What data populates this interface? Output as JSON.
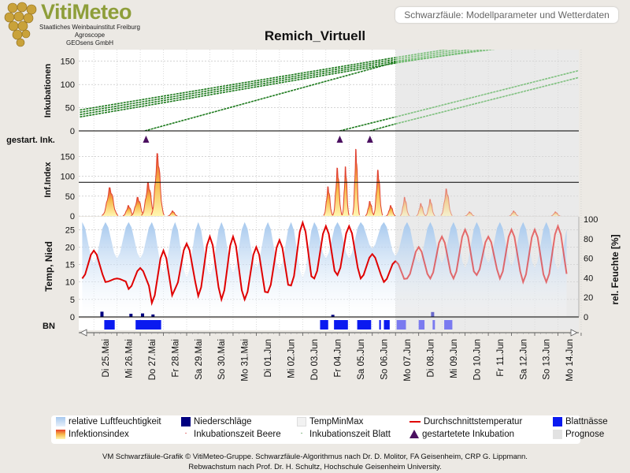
{
  "header": {
    "brand": "VitiMeteo",
    "org_lines": [
      "Staatliches Weinbauinstitut Freiburg",
      "Agroscope",
      "GEOsens GmbH"
    ],
    "tab": "Schwarzfäule: Modellparameter und Wetterdaten"
  },
  "chart_data": {
    "type": "line",
    "title": "Remich_Virtuell",
    "days": [
      "Di 25.Mai",
      "Mi 26.Mai",
      "Do 27.Mai",
      "Fr 28.Mai",
      "Sa 29.Mai",
      "So 30.Mai",
      "Mo 31.Mai",
      "Di 01.Jun",
      "Mi 02.Jun",
      "Do 03.Jun",
      "Fr 04.Jun",
      "Sa 05.Jun",
      "So 06.Jun",
      "Mo 07.Jun",
      "Di 08.Jun",
      "Mi 09.Jun",
      "Do 10.Jun",
      "Fr 11.Jun",
      "Sa 12.Jun",
      "So 13.Jun",
      "Mo 14.Jun"
    ],
    "forecast_start_day": 13,
    "panels": {
      "inkubationen": {
        "ylabel": "Inkubationen",
        "yticks": [
          0,
          50,
          100,
          150
        ],
        "ylim": [
          0,
          175
        ],
        "series": [
          {
            "name": "Inkubationszeit Blatt",
            "x": [
              -0.6,
              13,
              20.9
            ],
            "y": [
              45,
              158,
              220
            ]
          },
          {
            "name": "Inkubationszeit Blatt",
            "x": [
              -0.6,
              13,
              20.9
            ],
            "y": [
              40,
              154,
              216
            ]
          },
          {
            "name": "Inkubationszeit Blatt",
            "x": [
              -0.6,
              13,
              20.9
            ],
            "y": [
              35,
              150,
              212
            ]
          },
          {
            "name": "Inkubationszeit Blatt",
            "x": [
              -0.6,
              13,
              20.9
            ],
            "y": [
              30,
              146,
              208
            ]
          },
          {
            "name": "Inkubationszeit Blatt",
            "x": [
              2.2,
              13,
              20.9
            ],
            "y": [
              0,
              148,
              200
            ]
          },
          {
            "name": "Inkubationszeit Blatt",
            "x": [
              10.6,
              13,
              20.9
            ],
            "y": [
              0,
              30,
              130
            ]
          },
          {
            "name": "Inkubationszeit Blatt",
            "x": [
              11.9,
              13,
              20.9
            ],
            "y": [
              0,
              15,
              115
            ]
          }
        ]
      },
      "gestartete_inkubation": {
        "ylabel": "gestart. Ink.",
        "x": [
          2.25,
          10.6,
          11.9
        ]
      },
      "infektionsindex": {
        "ylabel": "Inf.Index",
        "yticks": [
          0,
          50,
          100,
          150
        ],
        "ylim": [
          0,
          175
        ],
        "threshold": 85,
        "peaks": [
          {
            "x": 0.7,
            "y": 68,
            "w": 0.35
          },
          {
            "x": 1.5,
            "y": 25,
            "w": 0.25
          },
          {
            "x": 1.9,
            "y": 45,
            "w": 0.3
          },
          {
            "x": 2.35,
            "y": 80,
            "w": 0.3
          },
          {
            "x": 2.75,
            "y": 150,
            "w": 0.28
          },
          {
            "x": 3.4,
            "y": 12,
            "w": 0.2
          },
          {
            "x": 10.1,
            "y": 70,
            "w": 0.2
          },
          {
            "x": 10.5,
            "y": 115,
            "w": 0.2
          },
          {
            "x": 10.85,
            "y": 118,
            "w": 0.15
          },
          {
            "x": 11.3,
            "y": 160,
            "w": 0.15
          },
          {
            "x": 11.9,
            "y": 35,
            "w": 0.2
          },
          {
            "x": 12.25,
            "y": 110,
            "w": 0.2
          },
          {
            "x": 12.8,
            "y": 25,
            "w": 0.2
          },
          {
            "x": 13.4,
            "y": 45,
            "w": 0.2
          },
          {
            "x": 14.1,
            "y": 30,
            "w": 0.2
          },
          {
            "x": 14.5,
            "y": 40,
            "w": 0.2
          },
          {
            "x": 15.2,
            "y": 65,
            "w": 0.25
          },
          {
            "x": 16.2,
            "y": 10,
            "w": 0.2
          },
          {
            "x": 18.1,
            "y": 12,
            "w": 0.2
          },
          {
            "x": 19.9,
            "y": 10,
            "w": 0.2
          }
        ]
      },
      "wetter": {
        "ylabel": "Temp, Nied",
        "yticks": [
          0,
          5,
          10,
          15,
          20,
          25
        ],
        "ylim": [
          0,
          28
        ],
        "y2label": "rel. Feuchte [%]",
        "y2ticks": [
          0,
          20,
          40,
          60,
          80,
          100
        ],
        "y2lim": [
          0,
          100
        ],
        "temp_daily_min": [
          11,
          10,
          8,
          4,
          8,
          6,
          5,
          5,
          7,
          9,
          11,
          12,
          11,
          10,
          11,
          11,
          11,
          12,
          11,
          10,
          10
        ],
        "temp_daily_max": [
          19,
          11,
          14,
          19,
          21,
          23,
          23,
          20,
          22,
          27,
          26,
          26,
          18,
          16,
          20,
          23,
          25,
          23,
          25,
          25,
          26
        ],
        "humidity_daily_min": [
          55,
          60,
          60,
          45,
          40,
          42,
          45,
          50,
          48,
          40,
          60,
          60,
          70,
          62,
          55,
          55,
          50,
          55,
          52,
          50,
          48
        ],
        "rain_events": [
          {
            "x": 0.35,
            "v": 1.5
          },
          {
            "x": 1.6,
            "v": 0.9
          },
          {
            "x": 2.1,
            "v": 1.0
          },
          {
            "x": 2.55,
            "v": 0.7
          },
          {
            "x": 10.3,
            "v": 0.6
          },
          {
            "x": 14.6,
            "v": 1.4
          }
        ]
      },
      "blattnaesse": {
        "ylabel": "BN",
        "periods": [
          [
            0.45,
            0.9
          ],
          [
            1.8,
            2.9
          ],
          [
            9.75,
            10.1
          ],
          [
            10.35,
            10.95
          ],
          [
            11.35,
            11.95
          ],
          [
            12.3,
            12.37
          ],
          [
            12.5,
            12.75
          ],
          [
            13.05,
            13.45
          ],
          [
            14.0,
            14.25
          ],
          [
            14.6,
            14.7
          ],
          [
            15.1,
            15.45
          ]
        ]
      }
    },
    "legend": [
      {
        "label": "relative Luftfeuchtigkeit",
        "icon": "humidity-gradient",
        "color": "#9cc3ec"
      },
      {
        "label": "Niederschläge",
        "icon": "square",
        "color": "#000080"
      },
      {
        "label": "TempMinMax",
        "icon": "square",
        "color": "#f2f2f2"
      },
      {
        "label": "Durchschnittstemperatur",
        "icon": "line",
        "color": "#e00000"
      },
      {
        "label": "Blattnässe",
        "icon": "square",
        "color": "#0a1af0"
      },
      {
        "label": "Infektionsindex",
        "icon": "infection-gradient",
        "color": "#f5c040"
      },
      {
        "label": "Inkubationszeit Beere",
        "icon": "dot",
        "color": "#cc0000"
      },
      {
        "label": "Inkubationszeit Blatt",
        "icon": "dot",
        "color": "#1a7a1a"
      },
      {
        "label": "gestartetete Inkubation",
        "icon": "triangle",
        "color": "#4b1060"
      },
      {
        "label": "Prognose",
        "icon": "square",
        "color": "#e2e2e2"
      }
    ]
  },
  "footer": {
    "line1": "VM Schwarzfäule-Grafik © VitiMeteo-Gruppe. Schwarzfäule-Algorithmus nach Dr. D. Molitor, FA Geisenheim, CRP G. Lippmann.",
    "line2": "Rebwachstum nach Prof. Dr. H. Schultz, Hochschule Geisenheim University."
  }
}
